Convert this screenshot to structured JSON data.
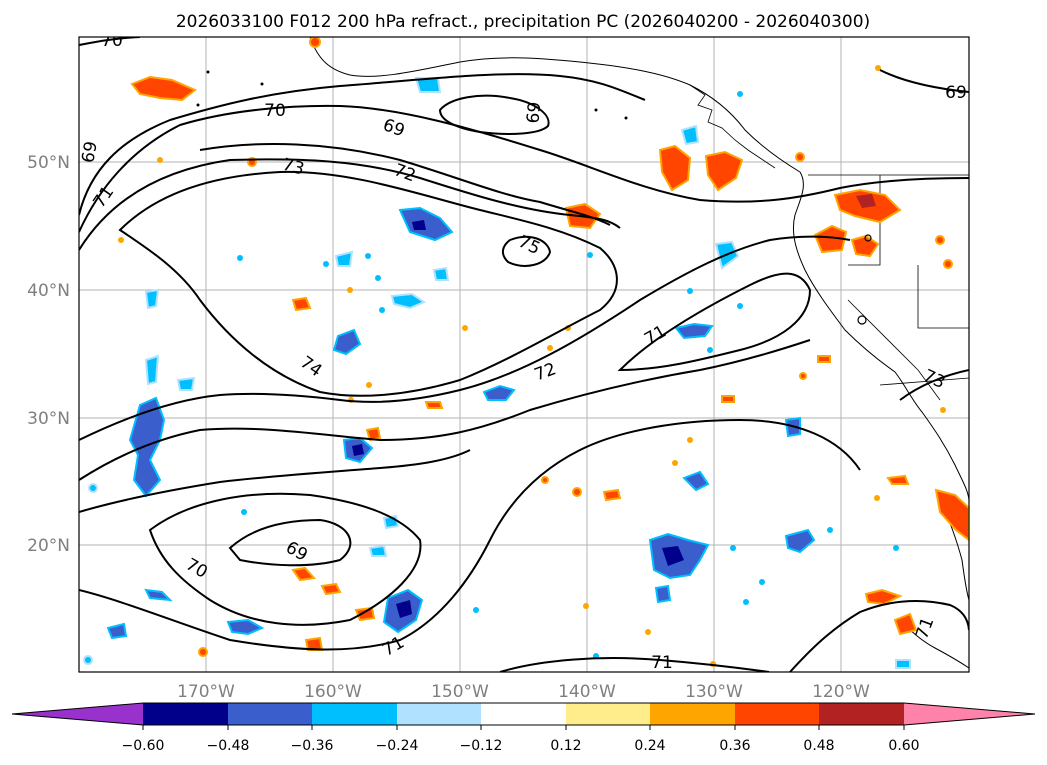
{
  "title": "2026033100 F012 200 hPa refract., precipitation PC (2026040200 - 2026040300)",
  "map": {
    "lat_labels": [
      {
        "value": 50,
        "text": "50°N"
      },
      {
        "value": 40,
        "text": "40°N"
      },
      {
        "value": 30,
        "text": "30°N"
      },
      {
        "value": 20,
        "text": "20°N"
      }
    ],
    "lon_labels": [
      {
        "value": -170,
        "text": "170°W"
      },
      {
        "value": -160,
        "text": "160°W"
      },
      {
        "value": -150,
        "text": "150°W"
      },
      {
        "value": -140,
        "text": "140°W"
      },
      {
        "value": -130,
        "text": "130°W"
      },
      {
        "value": -120,
        "text": "120°W"
      }
    ],
    "contour_labels": [
      "70",
      "70",
      "69",
      "69",
      "69",
      "71",
      "73",
      "72",
      "75",
      "74",
      "72",
      "71",
      "73",
      "69",
      "70",
      "71",
      "71",
      "71",
      "69"
    ]
  },
  "colorbar": {
    "ticks": [
      "−0.60",
      "−0.48",
      "−0.36",
      "−0.24",
      "−0.12",
      "0.12",
      "0.24",
      "0.36",
      "0.48",
      "0.60"
    ],
    "colors": [
      "#9932cc",
      "#00008b",
      "#3a5fcd",
      "#00bfff",
      "#b0e2ff",
      "#ffffff",
      "#ffec8b",
      "#ffa500",
      "#ff4500",
      "#b22222",
      "#ff82ab"
    ]
  }
}
